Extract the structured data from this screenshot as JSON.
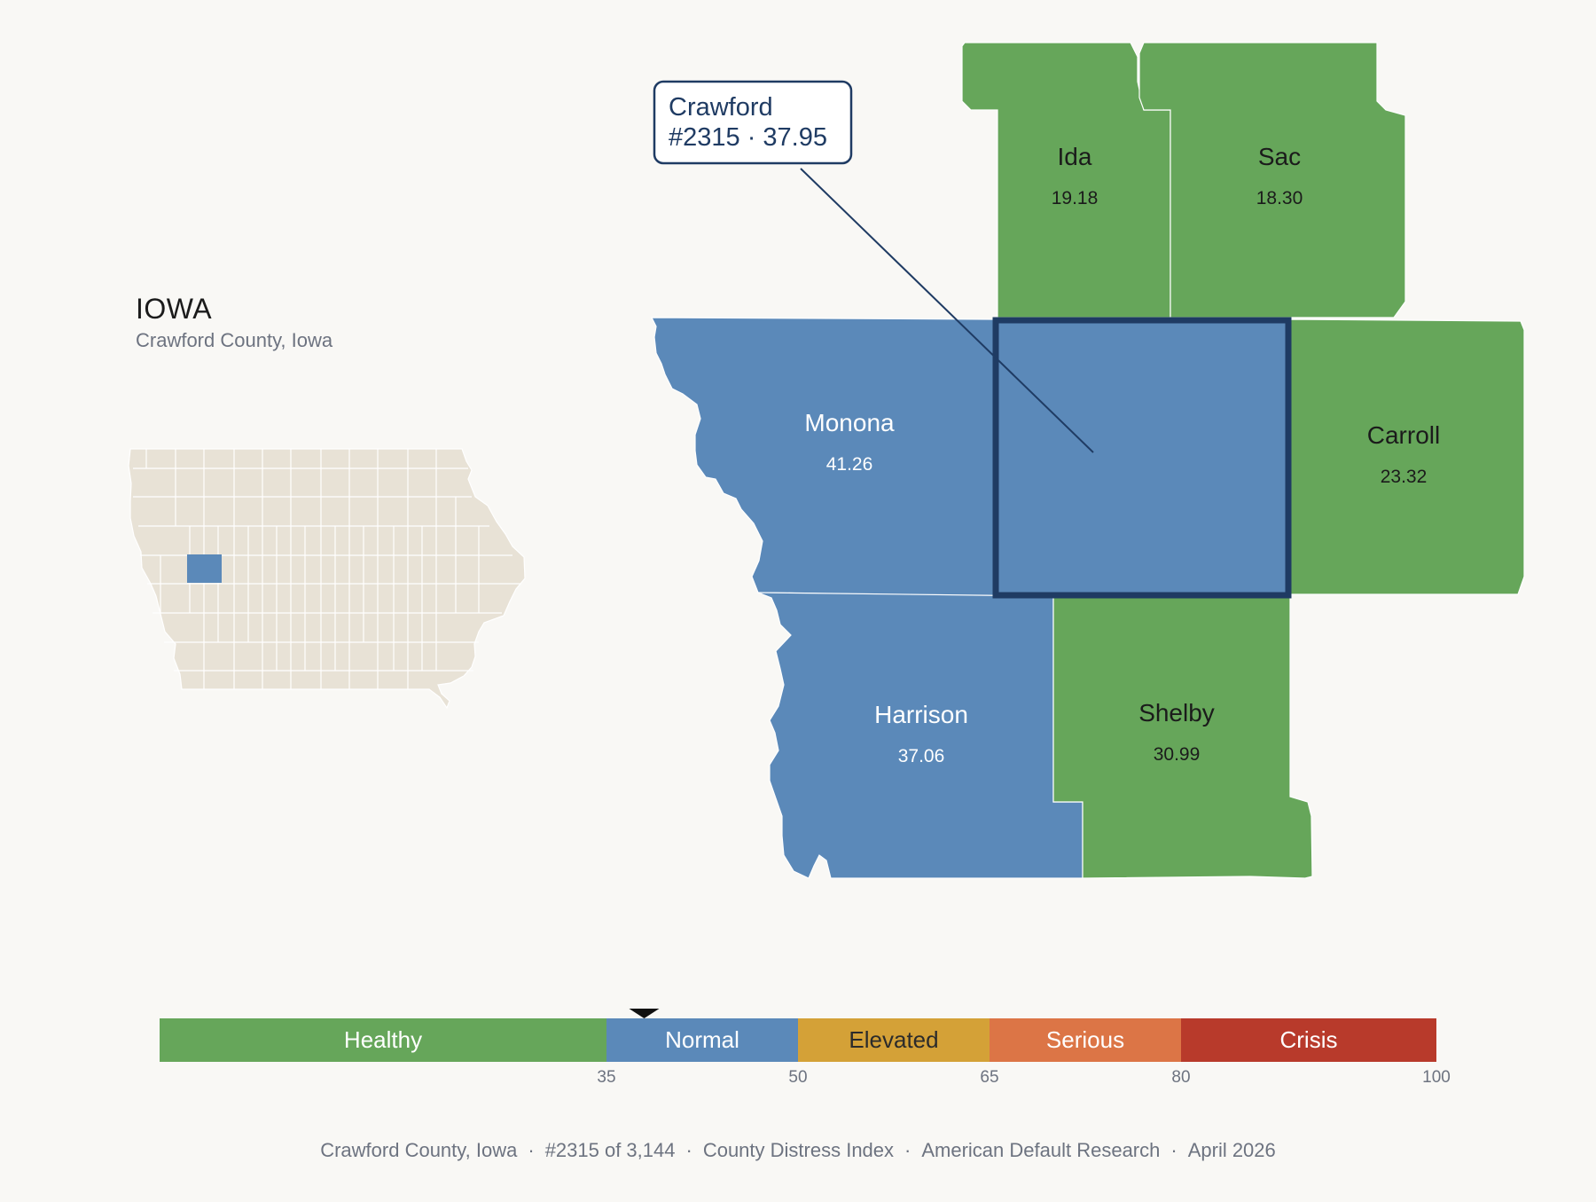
{
  "header": {
    "title": "IOWA",
    "subtitle": "Crawford County, Iowa"
  },
  "callout": {
    "line1": "Crawford",
    "line2": "#2315 · 37.95"
  },
  "counties": [
    {
      "name": "Ida",
      "value": "19.18",
      "status": "Healthy"
    },
    {
      "name": "Sac",
      "value": "18.30",
      "status": "Healthy"
    },
    {
      "name": "Monona",
      "value": "41.26",
      "status": "Normal"
    },
    {
      "name": "Carroll",
      "value": "23.32",
      "status": "Healthy"
    },
    {
      "name": "Harrison",
      "value": "37.06",
      "status": "Normal"
    },
    {
      "name": "Shelby",
      "value": "30.99",
      "status": "Healthy"
    }
  ],
  "selected_county": {
    "name": "Crawford",
    "rank": 2315,
    "value": 37.95,
    "status": "Normal"
  },
  "scale": {
    "min": 0,
    "max": 100,
    "marker_value": 37.95,
    "bands": [
      {
        "label": "Healthy",
        "from": 0,
        "to": 35,
        "color": "#66a65a",
        "text_color": "#ffffff"
      },
      {
        "label": "Normal",
        "from": 35,
        "to": 50,
        "color": "#5b89b9",
        "text_color": "#ffffff"
      },
      {
        "label": "Elevated",
        "from": 50,
        "to": 65,
        "color": "#d4a137",
        "text_color": "#2b2b2b"
      },
      {
        "label": "Serious",
        "from": 65,
        "to": 80,
        "color": "#dc7546",
        "text_color": "#ffffff"
      },
      {
        "label": "Crisis",
        "from": 80,
        "to": 100,
        "color": "#b83a2b",
        "text_color": "#ffffff"
      }
    ],
    "ticks": [
      "35",
      "50",
      "65",
      "80",
      "100"
    ]
  },
  "colors": {
    "healthy": "#66a65a",
    "normal": "#5b89b9",
    "selected_outline": "#1f3b63",
    "inset_fill": "#e8e2d6",
    "background": "#f9f8f5"
  },
  "footer": [
    "Crawford County, Iowa",
    "#2315 of 3,144",
    "County Distress Index",
    "American Default Research",
    "April 2026"
  ]
}
